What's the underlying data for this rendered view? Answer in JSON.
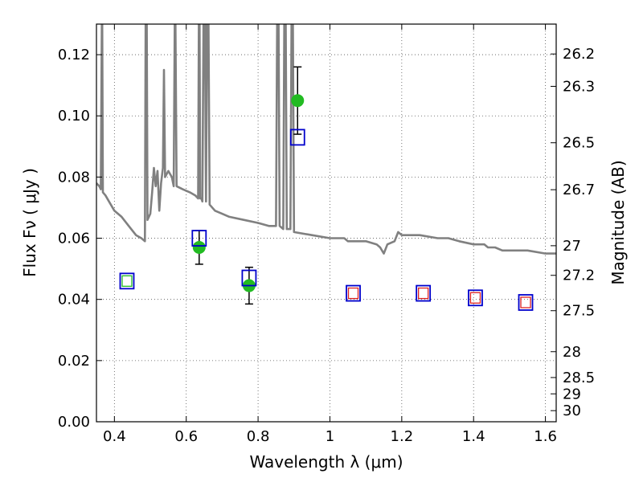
{
  "chart_data": {
    "type": "scatter",
    "xlabel": "Wavelength  λ (μm)",
    "ylabel": "Flux  Fν  ( μJy )",
    "y2label": "Magnitude (AB)",
    "xlim": [
      0.35,
      1.63
    ],
    "ylim": [
      0.0,
      0.13
    ],
    "grid": true,
    "x_ticks": [
      {
        "value": 0.4,
        "label": "0.4"
      },
      {
        "value": 0.6,
        "label": "0.6"
      },
      {
        "value": 0.8,
        "label": "0.8"
      },
      {
        "value": 1.0,
        "label": "1"
      },
      {
        "value": 1.2,
        "label": "1.2"
      },
      {
        "value": 1.4,
        "label": "1.4"
      },
      {
        "value": 1.6,
        "label": "1.6"
      }
    ],
    "y_ticks": [
      {
        "value": 0.0,
        "label": "0.00"
      },
      {
        "value": 0.02,
        "label": "0.02"
      },
      {
        "value": 0.04,
        "label": "0.04"
      },
      {
        "value": 0.06,
        "label": "0.06"
      },
      {
        "value": 0.08,
        "label": "0.08"
      },
      {
        "value": 0.1,
        "label": "0.10"
      },
      {
        "value": 0.12,
        "label": "0.12"
      }
    ],
    "y2_ticks": [
      {
        "value": 26.2,
        "label": "26.2"
      },
      {
        "value": 26.3,
        "label": "26.3"
      },
      {
        "value": 26.5,
        "label": "26.5"
      },
      {
        "value": 26.7,
        "label": "26.7"
      },
      {
        "value": 27.0,
        "label": "27"
      },
      {
        "value": 27.2,
        "label": "27.2"
      },
      {
        "value": 27.5,
        "label": "27.5"
      },
      {
        "value": 28.0,
        "label": "28"
      },
      {
        "value": 28.5,
        "label": "28.5"
      },
      {
        "value": 29.0,
        "label": "29"
      },
      {
        "value": 30.0,
        "label": "30"
      }
    ],
    "colors": {
      "sed": "#808080",
      "observed": "#22bb22",
      "model_box": "#0000cc",
      "model_inner_green": "#22bb22",
      "model_inner_red": "#dd2222",
      "errorbar": "#000000",
      "grid": "#555555"
    },
    "series": [
      {
        "kind": "line",
        "points": [
          [
            0.35,
            0.078
          ],
          [
            0.358,
            0.077
          ],
          [
            0.362,
            0.076
          ],
          [
            0.365,
            0.13
          ],
          [
            0.366,
            0.13
          ],
          [
            0.368,
            0.075
          ],
          [
            0.375,
            0.074
          ],
          [
            0.385,
            0.072
          ],
          [
            0.4,
            0.069
          ],
          [
            0.42,
            0.067
          ],
          [
            0.44,
            0.064
          ],
          [
            0.46,
            0.061
          ],
          [
            0.475,
            0.06
          ],
          [
            0.485,
            0.059
          ],
          [
            0.487,
            0.13
          ],
          [
            0.49,
            0.13
          ],
          [
            0.492,
            0.066
          ],
          [
            0.5,
            0.068
          ],
          [
            0.505,
            0.075
          ],
          [
            0.51,
            0.083
          ],
          [
            0.515,
            0.077
          ],
          [
            0.52,
            0.082
          ],
          [
            0.525,
            0.069
          ],
          [
            0.53,
            0.078
          ],
          [
            0.535,
            0.083
          ],
          [
            0.538,
            0.115
          ],
          [
            0.541,
            0.08
          ],
          [
            0.55,
            0.082
          ],
          [
            0.56,
            0.08
          ],
          [
            0.565,
            0.077
          ],
          [
            0.568,
            0.13
          ],
          [
            0.57,
            0.13
          ],
          [
            0.573,
            0.077
          ],
          [
            0.59,
            0.076
          ],
          [
            0.61,
            0.075
          ],
          [
            0.625,
            0.074
          ],
          [
            0.633,
            0.073
          ],
          [
            0.635,
            0.13
          ],
          [
            0.637,
            0.13
          ],
          [
            0.639,
            0.073
          ],
          [
            0.642,
            0.073
          ],
          [
            0.645,
            0.072
          ],
          [
            0.648,
            0.13
          ],
          [
            0.652,
            0.13
          ],
          [
            0.655,
            0.072
          ],
          [
            0.658,
            0.13
          ],
          [
            0.662,
            0.13
          ],
          [
            0.665,
            0.071
          ],
          [
            0.68,
            0.069
          ],
          [
            0.7,
            0.068
          ],
          [
            0.72,
            0.067
          ],
          [
            0.76,
            0.066
          ],
          [
            0.8,
            0.065
          ],
          [
            0.83,
            0.064
          ],
          [
            0.85,
            0.064
          ],
          [
            0.853,
            0.13
          ],
          [
            0.857,
            0.13
          ],
          [
            0.86,
            0.064
          ],
          [
            0.87,
            0.063
          ],
          [
            0.873,
            0.13
          ],
          [
            0.877,
            0.13
          ],
          [
            0.88,
            0.063
          ],
          [
            0.89,
            0.063
          ],
          [
            0.893,
            0.13
          ],
          [
            0.897,
            0.13
          ],
          [
            0.9,
            0.062
          ],
          [
            0.95,
            0.061
          ],
          [
            1.0,
            0.06
          ],
          [
            1.04,
            0.06
          ],
          [
            1.05,
            0.059
          ],
          [
            1.08,
            0.059
          ],
          [
            1.1,
            0.059
          ],
          [
            1.13,
            0.058
          ],
          [
            1.14,
            0.057
          ],
          [
            1.15,
            0.055
          ],
          [
            1.16,
            0.058
          ],
          [
            1.18,
            0.059
          ],
          [
            1.19,
            0.062
          ],
          [
            1.2,
            0.061
          ],
          [
            1.25,
            0.061
          ],
          [
            1.3,
            0.06
          ],
          [
            1.33,
            0.06
          ],
          [
            1.36,
            0.059
          ],
          [
            1.4,
            0.058
          ],
          [
            1.43,
            0.058
          ],
          [
            1.44,
            0.057
          ],
          [
            1.46,
            0.057
          ],
          [
            1.48,
            0.056
          ],
          [
            1.5,
            0.056
          ],
          [
            1.55,
            0.056
          ],
          [
            1.6,
            0.055
          ],
          [
            1.63,
            0.055
          ]
        ]
      },
      {
        "kind": "observed",
        "points": [
          {
            "x": 0.636,
            "y": 0.057,
            "err": 0.0055
          },
          {
            "x": 0.775,
            "y": 0.0445,
            "err": 0.006
          },
          {
            "x": 0.91,
            "y": 0.105,
            "err": 0.011
          }
        ]
      },
      {
        "kind": "model",
        "points": [
          {
            "x": 0.435,
            "y": 0.046,
            "inner": "green"
          },
          {
            "x": 0.636,
            "y": 0.06,
            "inner": "none"
          },
          {
            "x": 0.775,
            "y": 0.047,
            "inner": "none"
          },
          {
            "x": 0.91,
            "y": 0.093,
            "inner": "none"
          },
          {
            "x": 1.065,
            "y": 0.042,
            "inner": "red"
          },
          {
            "x": 1.26,
            "y": 0.042,
            "inner": "red"
          },
          {
            "x": 1.405,
            "y": 0.0405,
            "inner": "red"
          },
          {
            "x": 1.545,
            "y": 0.039,
            "inner": "red"
          }
        ]
      }
    ]
  }
}
